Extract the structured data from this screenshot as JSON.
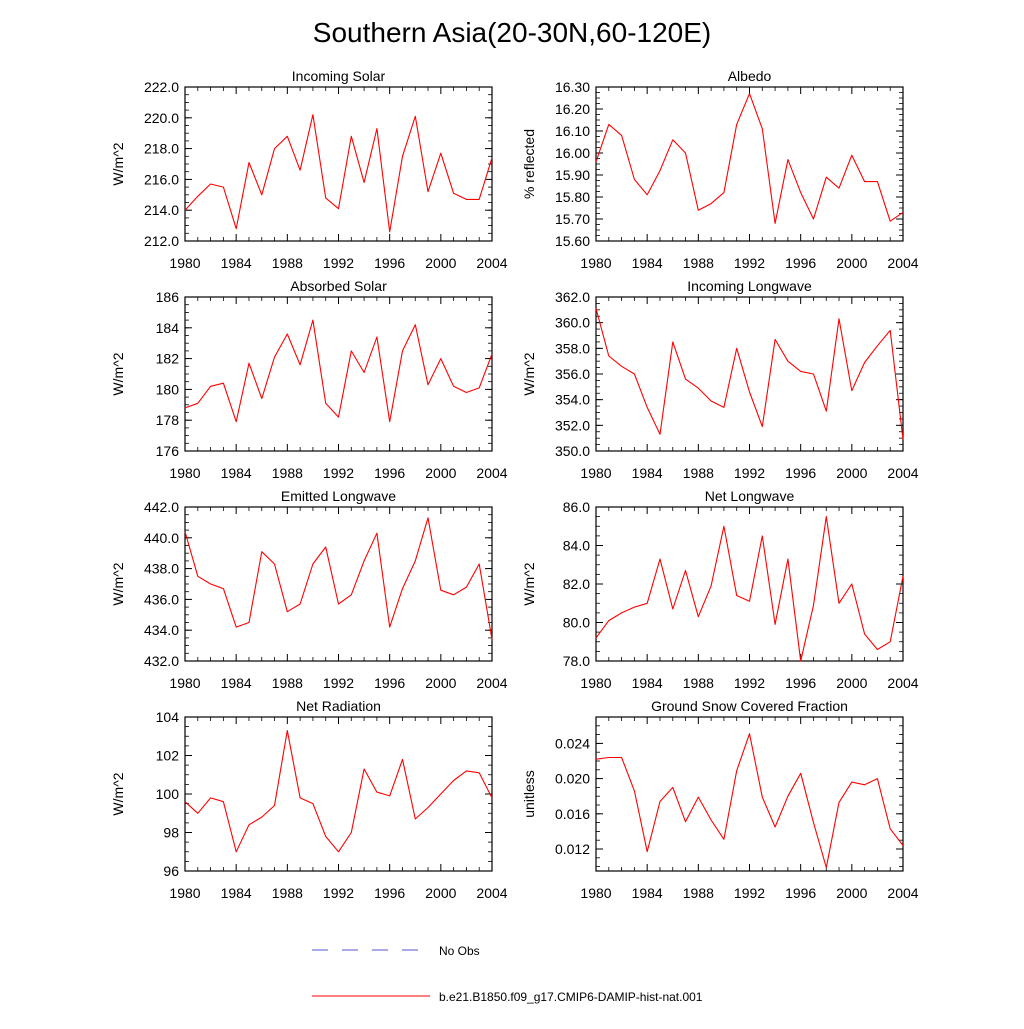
{
  "title": "Southern Asia(20-30N,60-120E)",
  "legend": [
    {
      "label": "No Obs",
      "color": "#5555cc",
      "style": "dashed"
    },
    {
      "label": "b.e21.B1850.f09_g17.CMIP6-DAMIP-hist-nat.001",
      "color": "#ff0000",
      "style": "solid"
    }
  ],
  "chart_data": [
    {
      "type": "line",
      "title": "Incoming Solar",
      "ylabel": "W/m^2",
      "xlim": [
        1980,
        2004
      ],
      "ylim": [
        212.0,
        222.0
      ],
      "yticks": [
        212.0,
        214.0,
        216.0,
        218.0,
        220.0,
        222.0
      ],
      "ytick_labels": [
        "212.0",
        "214.0",
        "216.0",
        "218.0",
        "220.0",
        "222.0"
      ],
      "xticks": [
        1980,
        1984,
        1988,
        1992,
        1996,
        2000,
        2004
      ],
      "xtick_labels": [
        "1980",
        "1984",
        "1988",
        "1992",
        "1996",
        "2000",
        "2004"
      ],
      "series": [
        {
          "name": "b.e21.B1850.f09_g17.CMIP6-DAMIP-hist-nat.001",
          "color": "#ff0000",
          "x": [
            1980,
            1981,
            1982,
            1983,
            1984,
            1985,
            1986,
            1987,
            1988,
            1989,
            1990,
            1991,
            1992,
            1993,
            1994,
            1995,
            1996,
            1997,
            1998,
            1999,
            2000,
            2001,
            2002,
            2003,
            2004
          ],
          "y": [
            214.0,
            214.9,
            215.7,
            215.5,
            212.8,
            217.1,
            215.0,
            218.0,
            218.8,
            216.6,
            220.2,
            214.8,
            214.1,
            218.8,
            215.8,
            219.3,
            212.6,
            217.5,
            220.1,
            215.2,
            217.7,
            215.1,
            214.7,
            214.7,
            217.4
          ]
        }
      ]
    },
    {
      "type": "line",
      "title": "Albedo",
      "ylabel": "% reflected",
      "xlim": [
        1980,
        2004
      ],
      "ylim": [
        15.6,
        16.3
      ],
      "yticks": [
        15.6,
        15.7,
        15.8,
        15.9,
        16.0,
        16.1,
        16.2,
        16.3
      ],
      "ytick_labels": [
        "15.60",
        "15.70",
        "15.80",
        "15.90",
        "16.00",
        "16.10",
        "16.20",
        "16.30"
      ],
      "xticks": [
        1980,
        1984,
        1988,
        1992,
        1996,
        2000,
        2004
      ],
      "xtick_labels": [
        "1980",
        "1984",
        "1988",
        "1992",
        "1996",
        "2000",
        "2004"
      ],
      "series": [
        {
          "name": "b.e21.B1850.f09_g17.CMIP6-DAMIP-hist-nat.001",
          "color": "#ff0000",
          "x": [
            1980,
            1981,
            1982,
            1983,
            1984,
            1985,
            1986,
            1987,
            1988,
            1989,
            1990,
            1991,
            1992,
            1993,
            1994,
            1995,
            1996,
            1997,
            1998,
            1999,
            2000,
            2001,
            2002,
            2003,
            2004
          ],
          "y": [
            15.96,
            16.13,
            16.08,
            15.88,
            15.81,
            15.92,
            16.06,
            16.0,
            15.74,
            15.77,
            15.82,
            16.13,
            16.27,
            16.11,
            15.68,
            15.97,
            15.82,
            15.7,
            15.89,
            15.84,
            15.99,
            15.87,
            15.87,
            15.69,
            15.73
          ]
        }
      ]
    },
    {
      "type": "line",
      "title": "Absorbed Solar",
      "ylabel": "W/m^2",
      "xlim": [
        1980,
        2004
      ],
      "ylim": [
        176,
        186
      ],
      "yticks": [
        176,
        178,
        180,
        182,
        184,
        186
      ],
      "ytick_labels": [
        "176",
        "178",
        "180",
        "182",
        "184",
        "186"
      ],
      "xticks": [
        1980,
        1984,
        1988,
        1992,
        1996,
        2000,
        2004
      ],
      "xtick_labels": [
        "1980",
        "1984",
        "1988",
        "1992",
        "1996",
        "2000",
        "2004"
      ],
      "series": [
        {
          "name": "b.e21.B1850.f09_g17.CMIP6-DAMIP-hist-nat.001",
          "color": "#ff0000",
          "x": [
            1980,
            1981,
            1982,
            1983,
            1984,
            1985,
            1986,
            1987,
            1988,
            1989,
            1990,
            1991,
            1992,
            1993,
            1994,
            1995,
            1996,
            1997,
            1998,
            1999,
            2000,
            2001,
            2002,
            2003,
            2004
          ],
          "y": [
            178.8,
            179.1,
            180.2,
            180.4,
            177.9,
            181.7,
            179.4,
            182.1,
            183.6,
            181.6,
            184.5,
            179.1,
            178.2,
            182.5,
            181.1,
            183.4,
            177.9,
            182.5,
            184.2,
            180.3,
            182.0,
            180.2,
            179.8,
            180.1,
            182.3
          ]
        }
      ]
    },
    {
      "type": "line",
      "title": "Incoming Longwave",
      "ylabel": "W/m^2",
      "xlim": [
        1980,
        2004
      ],
      "ylim": [
        350.0,
        362.0
      ],
      "yticks": [
        350.0,
        352.0,
        354.0,
        356.0,
        358.0,
        360.0,
        362.0
      ],
      "ytick_labels": [
        "350.0",
        "352.0",
        "354.0",
        "356.0",
        "358.0",
        "360.0",
        "362.0"
      ],
      "xticks": [
        1980,
        1984,
        1988,
        1992,
        1996,
        2000,
        2004
      ],
      "xtick_labels": [
        "1980",
        "1984",
        "1988",
        "1992",
        "1996",
        "2000",
        "2004"
      ],
      "series": [
        {
          "name": "b.e21.B1850.f09_g17.CMIP6-DAMIP-hist-nat.001",
          "color": "#ff0000",
          "x": [
            1980,
            1981,
            1982,
            1983,
            1984,
            1985,
            1986,
            1987,
            1988,
            1989,
            1990,
            1991,
            1992,
            1993,
            1994,
            1995,
            1996,
            1997,
            1998,
            1999,
            2000,
            2001,
            2002,
            2003,
            2004
          ],
          "y": [
            361.1,
            357.4,
            356.6,
            356.0,
            353.4,
            351.3,
            358.5,
            355.6,
            354.9,
            353.9,
            353.4,
            358.0,
            354.6,
            351.9,
            358.7,
            357.0,
            356.2,
            356.0,
            353.1,
            360.3,
            354.7,
            356.9,
            358.2,
            359.4,
            350.9
          ]
        }
      ]
    },
    {
      "type": "line",
      "title": "Emitted Longwave",
      "ylabel": "W/m^2",
      "xlim": [
        1980,
        2004
      ],
      "ylim": [
        432.0,
        442.0
      ],
      "yticks": [
        432.0,
        434.0,
        436.0,
        438.0,
        440.0,
        442.0
      ],
      "ytick_labels": [
        "432.0",
        "434.0",
        "436.0",
        "438.0",
        "440.0",
        "442.0"
      ],
      "xticks": [
        1980,
        1984,
        1988,
        1992,
        1996,
        2000,
        2004
      ],
      "xtick_labels": [
        "1980",
        "1984",
        "1988",
        "1992",
        "1996",
        "2000",
        "2004"
      ],
      "series": [
        {
          "name": "b.e21.B1850.f09_g17.CMIP6-DAMIP-hist-nat.001",
          "color": "#ff0000",
          "x": [
            1980,
            1981,
            1982,
            1983,
            1984,
            1985,
            1986,
            1987,
            1988,
            1989,
            1990,
            1991,
            1992,
            1993,
            1994,
            1995,
            1996,
            1997,
            1998,
            1999,
            2000,
            2001,
            2002,
            2003,
            2004
          ],
          "y": [
            440.4,
            437.5,
            437.0,
            436.7,
            434.2,
            434.5,
            439.1,
            438.3,
            435.2,
            435.7,
            438.3,
            439.4,
            435.7,
            436.3,
            438.5,
            440.3,
            434.2,
            436.7,
            438.5,
            441.3,
            436.6,
            436.3,
            436.8,
            438.3,
            433.4
          ]
        }
      ]
    },
    {
      "type": "line",
      "title": "Net Longwave",
      "ylabel": "W/m^2",
      "xlim": [
        1980,
        2004
      ],
      "ylim": [
        78.0,
        86.0
      ],
      "yticks": [
        78.0,
        80.0,
        82.0,
        84.0,
        86.0
      ],
      "ytick_labels": [
        "78.0",
        "80.0",
        "82.0",
        "84.0",
        "86.0"
      ],
      "xticks": [
        1980,
        1984,
        1988,
        1992,
        1996,
        2000,
        2004
      ],
      "xtick_labels": [
        "1980",
        "1984",
        "1988",
        "1992",
        "1996",
        "2000",
        "2004"
      ],
      "series": [
        {
          "name": "b.e21.B1850.f09_g17.CMIP6-DAMIP-hist-nat.001",
          "color": "#ff0000",
          "x": [
            1980,
            1981,
            1982,
            1983,
            1984,
            1985,
            1986,
            1987,
            1988,
            1989,
            1990,
            1991,
            1992,
            1993,
            1994,
            1995,
            1996,
            1997,
            1998,
            1999,
            2000,
            2001,
            2002,
            2003,
            2004
          ],
          "y": [
            79.2,
            80.1,
            80.5,
            80.8,
            81.0,
            83.3,
            80.7,
            82.7,
            80.3,
            81.9,
            85.0,
            81.4,
            81.1,
            84.5,
            79.9,
            83.3,
            78.0,
            80.9,
            85.5,
            81.0,
            82.0,
            79.4,
            78.6,
            79.0,
            82.4
          ]
        }
      ]
    },
    {
      "type": "line",
      "title": "Net Radiation",
      "ylabel": "W/m^2",
      "xlim": [
        1980,
        2004
      ],
      "ylim": [
        96,
        104
      ],
      "yticks": [
        96,
        98,
        100,
        102,
        104
      ],
      "ytick_labels": [
        "96",
        "98",
        "100",
        "102",
        "104"
      ],
      "xticks": [
        1980,
        1984,
        1988,
        1992,
        1996,
        2000,
        2004
      ],
      "xtick_labels": [
        "1980",
        "1984",
        "1988",
        "1992",
        "1996",
        "2000",
        "2004"
      ],
      "series": [
        {
          "name": "b.e21.B1850.f09_g17.CMIP6-DAMIP-hist-nat.001",
          "color": "#ff0000",
          "x": [
            1980,
            1981,
            1982,
            1983,
            1984,
            1985,
            1986,
            1987,
            1988,
            1989,
            1990,
            1991,
            1992,
            1993,
            1994,
            1995,
            1996,
            1997,
            1998,
            1999,
            2000,
            2001,
            2002,
            2003,
            2004
          ],
          "y": [
            99.6,
            99.0,
            99.8,
            99.6,
            97.0,
            98.4,
            98.8,
            99.4,
            103.3,
            99.8,
            99.5,
            97.8,
            97.0,
            98.0,
            101.3,
            100.1,
            99.9,
            101.8,
            98.7,
            99.3,
            100.0,
            100.7,
            101.2,
            101.1,
            99.8
          ]
        }
      ]
    },
    {
      "type": "line",
      "title": "Ground Snow Covered Fraction",
      "ylabel": "unitless",
      "xlim": [
        1980,
        2004
      ],
      "ylim": [
        0.0095,
        0.027
      ],
      "yticks": [
        0.012,
        0.016,
        0.02,
        0.024
      ],
      "ytick_labels": [
        "0.012",
        "0.016",
        "0.020",
        "0.024"
      ],
      "xticks": [
        1980,
        1984,
        1988,
        1992,
        1996,
        2000,
        2004
      ],
      "xtick_labels": [
        "1980",
        "1984",
        "1988",
        "1992",
        "1996",
        "2000",
        "2004"
      ],
      "series": [
        {
          "name": "b.e21.B1850.f09_g17.CMIP6-DAMIP-hist-nat.001",
          "color": "#ff0000",
          "x": [
            1980,
            1981,
            1982,
            1983,
            1984,
            1985,
            1986,
            1987,
            1988,
            1989,
            1990,
            1991,
            1992,
            1993,
            1994,
            1995,
            1996,
            1997,
            1998,
            1999,
            2000,
            2001,
            2002,
            2003,
            2004
          ],
          "y": [
            0.0222,
            0.0224,
            0.0224,
            0.0186,
            0.0117,
            0.0174,
            0.019,
            0.0151,
            0.0179,
            0.0153,
            0.0131,
            0.0209,
            0.0251,
            0.0179,
            0.0145,
            0.018,
            0.0206,
            0.015,
            0.0099,
            0.0173,
            0.0196,
            0.0193,
            0.02,
            0.0143,
            0.0124
          ]
        }
      ]
    }
  ]
}
